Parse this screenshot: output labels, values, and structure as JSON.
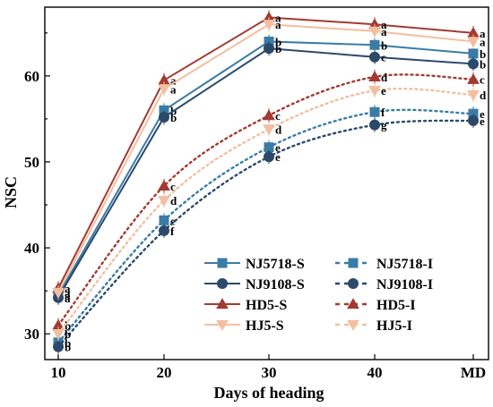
{
  "chart_data": {
    "type": "line",
    "title": "",
    "xlabel": "Days of heading",
    "ylabel": "NSC",
    "categories": [
      "10",
      "20",
      "30",
      "40",
      "MD"
    ],
    "ylim": [
      27,
      68
    ],
    "yticks": [
      30,
      40,
      50,
      60
    ],
    "legend_position": "bottom-right",
    "series": [
      {
        "name": "NJ5718-S",
        "values": [
          34.5,
          56.0,
          64.0,
          63.6,
          62.6
        ],
        "labels": [
          "a",
          "b",
          "b",
          "b",
          "b"
        ],
        "color": "#3a7ca5",
        "marker": "square",
        "line": "solid"
      },
      {
        "name": "NJ9108-S",
        "values": [
          34.2,
          55.2,
          63.2,
          62.2,
          61.4
        ],
        "labels": [
          "a",
          "b",
          "b",
          "c",
          "b"
        ],
        "color": "#2b4a6b",
        "marker": "circle",
        "line": "solid"
      },
      {
        "name": "HD5-S",
        "values": [
          35.3,
          59.5,
          66.8,
          66.0,
          65.0
        ],
        "labels": [
          "a",
          "a",
          "a",
          "a",
          "a"
        ],
        "color": "#a33a32",
        "marker": "triangle-up",
        "line": "solid"
      },
      {
        "name": "HJ5-S",
        "values": [
          34.8,
          58.5,
          66.0,
          65.2,
          64.0
        ],
        "labels": [
          "a",
          "a",
          "a",
          "a",
          "a"
        ],
        "color": "#f2bfa0",
        "marker": "triangle-down",
        "line": "solid"
      },
      {
        "name": "NJ5718-I",
        "values": [
          29.0,
          43.2,
          51.7,
          55.8,
          55.6
        ],
        "labels": [
          "b",
          "e",
          "e",
          "f",
          "e"
        ],
        "color": "#3a7ca5",
        "marker": "square",
        "line": "dotted"
      },
      {
        "name": "NJ9108-I",
        "values": [
          28.5,
          42.0,
          50.6,
          54.3,
          54.8
        ],
        "labels": [
          "b",
          "f",
          "e",
          "g",
          "e"
        ],
        "color": "#2b4a6b",
        "marker": "circle",
        "line": "dotted"
      },
      {
        "name": "HD5-I",
        "values": [
          31.0,
          47.2,
          55.4,
          59.9,
          59.6
        ],
        "labels": [
          "b",
          "c",
          "c",
          "d",
          "c"
        ],
        "color": "#a33a32",
        "marker": "triangle-up",
        "line": "dotted"
      },
      {
        "name": "HJ5-I",
        "values": [
          30.0,
          45.5,
          53.8,
          58.3,
          57.8
        ],
        "labels": [
          "b",
          "d",
          "d",
          "e",
          "d"
        ],
        "color": "#f2bfa0",
        "marker": "triangle-down",
        "line": "dotted"
      }
    ]
  }
}
